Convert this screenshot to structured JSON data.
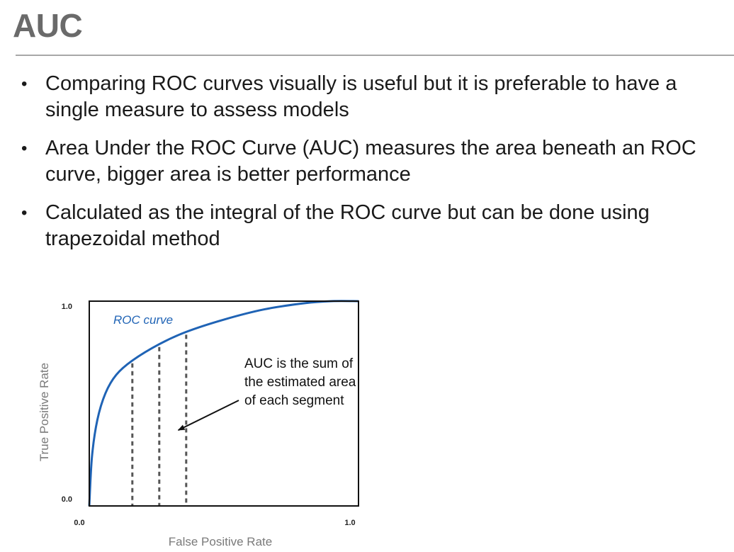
{
  "slide": {
    "title": "AUC",
    "bullets": [
      "Comparing ROC curves visually is useful but it is preferable to have a single measure to assess models",
      "Area Under the ROC Curve (AUC) measures the area beneath an ROC curve, bigger area is better performance",
      "Calculated as the integral of the ROC curve but can be done using trapezoidal method"
    ],
    "bullet_symbol": "•"
  },
  "chart_data": {
    "type": "line",
    "xlabel": "False Positive Rate",
    "ylabel": "True Positive Rate",
    "xlim": [
      0.0,
      1.0
    ],
    "ylim": [
      0.0,
      1.0
    ],
    "x_ticks": [
      "0.0",
      "1.0"
    ],
    "y_ticks": [
      "0.0",
      "1.0"
    ],
    "grid": false,
    "series": [
      {
        "name": "ROC curve",
        "color": "#1f63b5",
        "x": [
          0.0,
          0.01,
          0.03,
          0.06,
          0.1,
          0.16,
          0.26,
          0.36,
          0.5,
          0.65,
          0.8,
          0.9,
          1.0
        ],
        "y": [
          0.0,
          0.24,
          0.42,
          0.55,
          0.64,
          0.71,
          0.79,
          0.85,
          0.91,
          0.96,
          0.99,
          1.0,
          1.0
        ]
      }
    ],
    "segment_lines": [
      0.16,
      0.26,
      0.36
    ],
    "annotation": {
      "lines": [
        "AUC is the sum of",
        "the estimated area",
        "of each segment"
      ],
      "arrow_to": [
        0.32,
        0.37
      ]
    }
  }
}
